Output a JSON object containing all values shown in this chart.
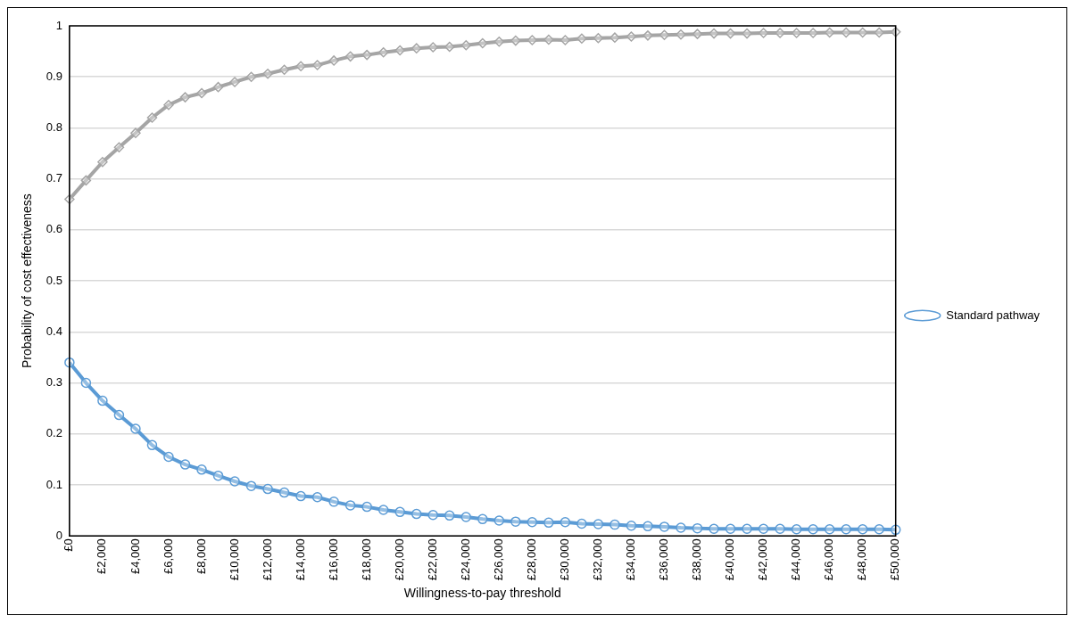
{
  "chart_data": {
    "type": "line",
    "xlabel": "Willingness-to-pay threshold",
    "ylabel": "Probability of cost effectiveness",
    "categories": [
      "£0",
      null,
      "£2,000",
      null,
      "£4,000",
      null,
      "£6,000",
      null,
      "£8,000",
      null,
      "£10,000",
      null,
      "£12,000",
      null,
      "£14,000",
      null,
      "£16,000",
      null,
      "£18,000",
      null,
      "£20,000",
      null,
      "£22,000",
      null,
      "£24,000",
      null,
      "£26,000",
      null,
      "£28,000",
      null,
      "£30,000",
      null,
      "£32,000",
      null,
      "£34,000",
      null,
      "£36,000",
      null,
      "£38,000",
      null,
      "£40,000",
      null,
      "£42,000",
      null,
      "£44,000",
      null,
      "£46,000",
      null,
      "£48,000",
      null,
      "£50,000"
    ],
    "series": [
      {
        "name": "Standard pathway",
        "color": "#5b9bd5",
        "marker": "circle",
        "values": [
          0.34,
          0.3,
          0.265,
          0.237,
          0.21,
          0.178,
          0.155,
          0.14,
          0.13,
          0.118,
          0.107,
          0.098,
          0.092,
          0.085,
          0.078,
          0.076,
          0.067,
          0.06,
          0.057,
          0.051,
          0.047,
          0.043,
          0.041,
          0.04,
          0.037,
          0.033,
          0.03,
          0.028,
          0.027,
          0.026,
          0.027,
          0.024,
          0.023,
          0.022,
          0.02,
          0.019,
          0.018,
          0.016,
          0.015,
          0.014,
          0.014,
          0.014,
          0.014,
          0.014,
          0.013,
          0.013,
          0.013,
          0.013,
          0.013,
          0.013,
          0.012
        ]
      },
      {
        "color": "#a5a5a5",
        "marker": "diamond",
        "values": [
          0.66,
          0.697,
          0.733,
          0.762,
          0.79,
          0.82,
          0.845,
          0.86,
          0.868,
          0.88,
          0.89,
          0.9,
          0.906,
          0.914,
          0.921,
          0.923,
          0.932,
          0.94,
          0.943,
          0.948,
          0.952,
          0.956,
          0.958,
          0.959,
          0.962,
          0.966,
          0.969,
          0.971,
          0.972,
          0.973,
          0.972,
          0.975,
          0.976,
          0.977,
          0.979,
          0.981,
          0.982,
          0.983,
          0.984,
          0.985,
          0.985,
          0.985,
          0.986,
          0.986,
          0.986,
          0.986,
          0.987,
          0.987,
          0.987,
          0.987,
          0.988
        ]
      }
    ],
    "ylim": [
      0,
      1
    ],
    "yticks": [
      0,
      0.1,
      0.2,
      0.3,
      0.4,
      0.5,
      0.6,
      0.7,
      0.8,
      0.9,
      1
    ],
    "grid": "y",
    "legend": "right",
    "line_style": "solid"
  }
}
